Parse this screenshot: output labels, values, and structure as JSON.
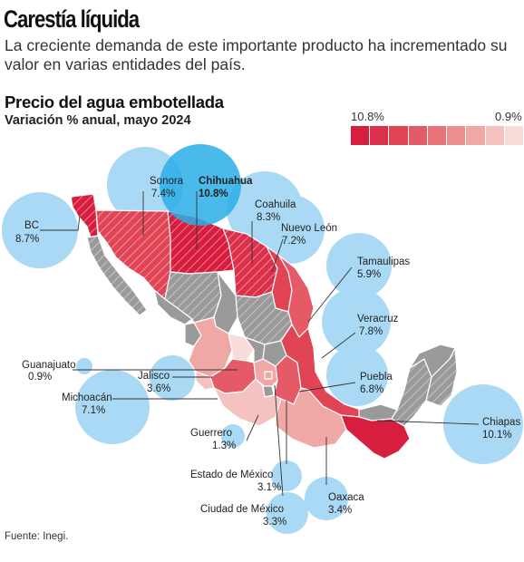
{
  "header": {
    "title": "Carestía líquida",
    "subtitle": "La creciente demanda de este importante producto ha incrementado su valor en varias entidades del país."
  },
  "map": {
    "title": "Precio del agua embotellada",
    "subtitle": "Variación % anual, mayo 2024",
    "legend": {
      "max_label": "10.8%",
      "min_label": "0.9%",
      "colors": [
        "#d81e3e",
        "#dc2f49",
        "#e04455",
        "#e45a66",
        "#e87479",
        "#ec8e90",
        "#f0a8a7",
        "#f4c2c0",
        "#f8dcd9"
      ]
    },
    "colors": {
      "bubble": "#a9d9f5",
      "bubble_highlight": "#2aaee8",
      "no_data": "#9a9a9a",
      "border": "#ffffff"
    },
    "entities": [
      {
        "id": "bc",
        "name": "BC",
        "value": "8.7%",
        "highlight": false
      },
      {
        "id": "sonora",
        "name": "Sonora",
        "value": "7.4%",
        "highlight": false
      },
      {
        "id": "chihuahua",
        "name": "Chihuahua",
        "value": "10.8%",
        "highlight": true
      },
      {
        "id": "coahuila",
        "name": "Coahuila",
        "value": "8.3%",
        "highlight": false
      },
      {
        "id": "nuevo-leon",
        "name": "Nuevo León",
        "value": "7.2%",
        "highlight": false
      },
      {
        "id": "tamaulipas",
        "name": "Tamaulipas",
        "value": "5.9%",
        "highlight": false
      },
      {
        "id": "veracruz",
        "name": "Veracruz",
        "value": "7.8%",
        "highlight": false
      },
      {
        "id": "guanajuato",
        "name": "Guanajuato",
        "value": "0.9%",
        "highlight": false
      },
      {
        "id": "jalisco",
        "name": "Jalisco",
        "value": "3.6%",
        "highlight": false
      },
      {
        "id": "puebla",
        "name": "Puebla",
        "value": "6.8%",
        "highlight": false
      },
      {
        "id": "michoacan",
        "name": "Michoacán",
        "value": "7.1%",
        "highlight": false
      },
      {
        "id": "chiapas",
        "name": "Chiapas",
        "value": "10.1%",
        "highlight": false
      },
      {
        "id": "guerrero",
        "name": "Guerrero",
        "value": "1.3%",
        "highlight": false
      },
      {
        "id": "edomex",
        "name": "Estado de México",
        "value": "3.1%",
        "highlight": false
      },
      {
        "id": "oaxaca",
        "name": "Oaxaca",
        "value": "3.4%",
        "highlight": false
      },
      {
        "id": "cdmx",
        "name": "Ciudad de México",
        "value": "3.3%",
        "highlight": false
      }
    ]
  },
  "footer": {
    "source": "Fuente: Inegi."
  }
}
